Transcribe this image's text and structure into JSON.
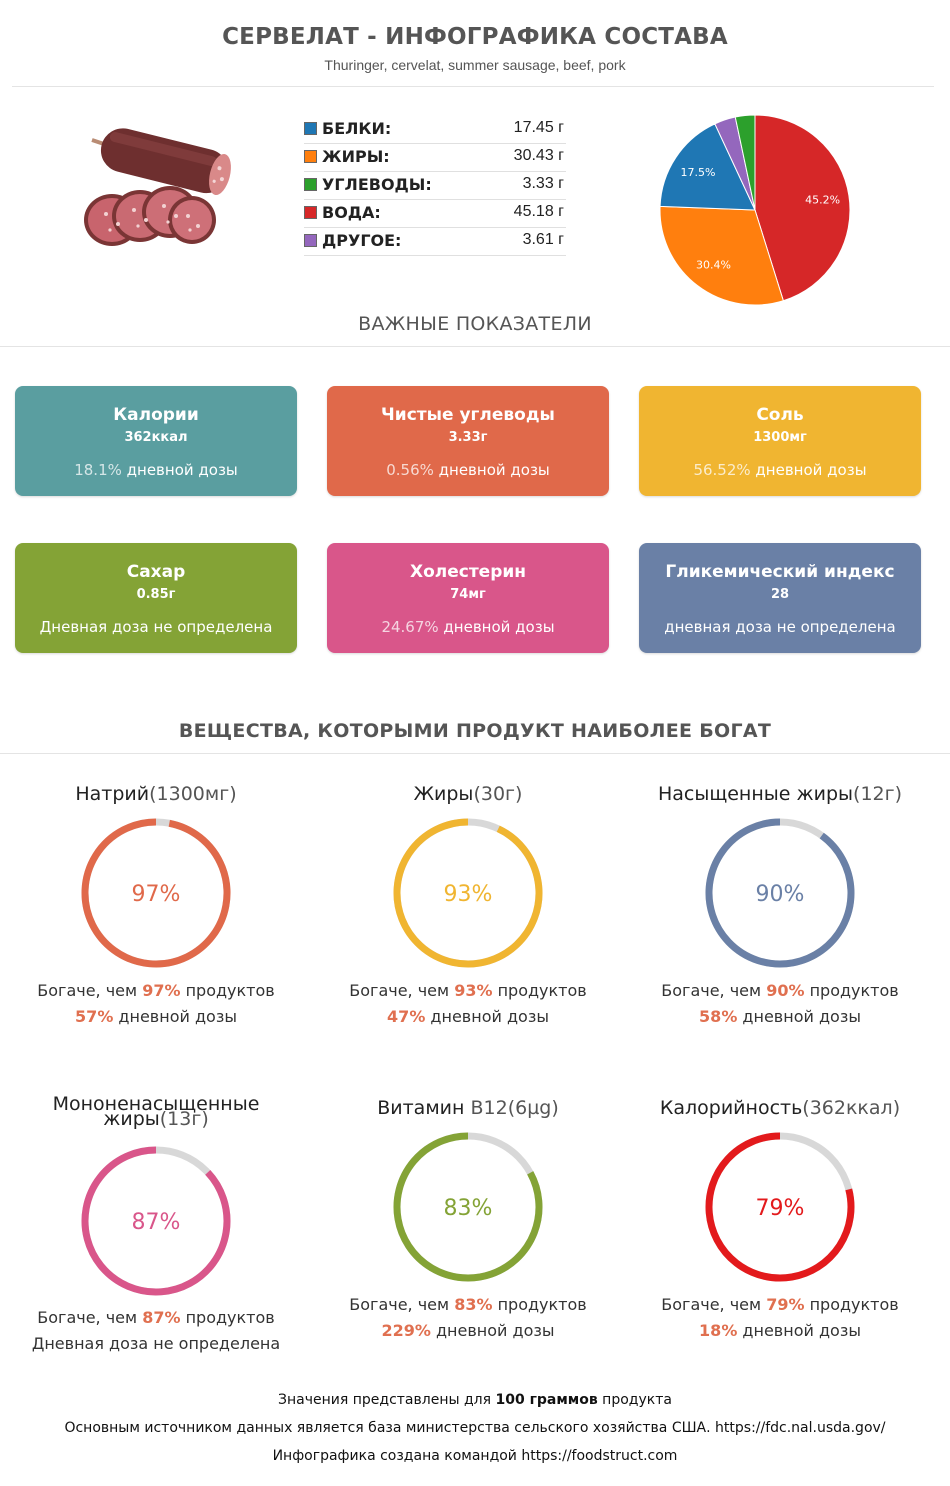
{
  "header": {
    "title": "СЕРВЕЛАТ - ИНФОГРАФИКА СОСТАВА",
    "subtitle": "Thuringer, cervelat, summer sausage, beef, pork"
  },
  "macros": [
    {
      "name": "БЕЛКИ:",
      "value": "17.45 г",
      "color": "#1f77b4"
    },
    {
      "name": "ЖИРЫ:",
      "value": "30.43 г",
      "color": "#ff7f0e"
    },
    {
      "name": "УГЛЕВОДЫ:",
      "value": "3.33 г",
      "color": "#2ca02c"
    },
    {
      "name": "ВОДА:",
      "value": "45.18 г",
      "color": "#d62728"
    },
    {
      "name": "ДРУГОЕ:",
      "value": "3.61 г",
      "color": "#9467bd"
    }
  ],
  "chart_data": {
    "type": "pie",
    "slices": [
      {
        "label": "ВОДА",
        "value": 45.18,
        "pct_label": "45.2%",
        "color": "#d62728"
      },
      {
        "label": "ЖИРЫ",
        "value": 30.43,
        "pct_label": "30.4%",
        "color": "#ff7f0e"
      },
      {
        "label": "БЕЛКИ",
        "value": 17.45,
        "pct_label": "17.5%",
        "color": "#1f77b4"
      },
      {
        "label": "ДРУГОЕ",
        "value": 3.61,
        "pct_label": "",
        "color": "#9467bd"
      },
      {
        "label": "УГЛЕВОДЫ",
        "value": 3.33,
        "pct_label": "",
        "color": "#2ca02c"
      }
    ]
  },
  "section1": {
    "title": "ВАЖНЫЕ ПОКАЗАТЕЛИ"
  },
  "cards": [
    {
      "title": "Калории",
      "value": "362ккал",
      "pct": "18.1%",
      "suffix": " дневной дозы",
      "color": "#5a9ea0"
    },
    {
      "title": "Чистые углеводы",
      "value": "3.33г",
      "pct": "0.56%",
      "suffix": " дневной дозы",
      "color": "#e0694a"
    },
    {
      "title": "Соль",
      "value": "1300мг",
      "pct": "56.52%",
      "suffix": " дневной дозы",
      "color": "#f0b531"
    },
    {
      "title": "Сахар",
      "value": "0.85г",
      "pct": "",
      "suffix": "Дневная доза не определена",
      "color": "#84a336"
    },
    {
      "title": "Холестерин",
      "value": "74мг",
      "pct": "24.67%",
      "suffix": " дневной дозы",
      "color": "#d9568a"
    },
    {
      "title": "Гликемический индекс",
      "value": "28",
      "pct": "",
      "suffix": "дневная доза не определена",
      "color": "#6a80a6"
    }
  ],
  "section2": {
    "title": "ВЕЩЕСТВА, КОТОРЫМИ ПРОДУКТ НАИБОЛЕЕ БОГАТ"
  },
  "rings": [
    {
      "name": "Натрий",
      "amount": "(1300мг)",
      "percent": 97,
      "percent_label": "97%",
      "color": "#e0694a",
      "richer_prefix": "Богаче, чем ",
      "richer_pct": "97%",
      "richer_suffix": " продуктов",
      "daily_pct": "57%",
      "daily_suffix": " дневной дозы"
    },
    {
      "name": "Жиры",
      "amount": "(30г)",
      "percent": 93,
      "percent_label": "93%",
      "color": "#f0b531",
      "richer_prefix": "Богаче, чем ",
      "richer_pct": "93%",
      "richer_suffix": " продуктов",
      "daily_pct": "47%",
      "daily_suffix": " дневной дозы"
    },
    {
      "name": "Насыщенные жиры",
      "amount": "(12г)",
      "percent": 90,
      "percent_label": "90%",
      "color": "#6a80a6",
      "richer_prefix": "Богаче, чем ",
      "richer_pct": "90%",
      "richer_suffix": " продуктов",
      "daily_pct": "58%",
      "daily_suffix": " дневной дозы"
    },
    {
      "name": "Мононенасыщенные жиры",
      "amount": "(13г)",
      "percent": 87,
      "percent_label": "87%",
      "color": "#d9568a",
      "richer_prefix": "Богаче, чем ",
      "richer_pct": "87%",
      "richer_suffix": " продуктов",
      "daily_pct": "",
      "daily_suffix": "Дневная доза не определена"
    },
    {
      "name": "Витамин",
      "amount": " B12(6µg)",
      "percent": 83,
      "percent_label": "83%",
      "color": "#84a336",
      "richer_prefix": "Богаче, чем ",
      "richer_pct": "83%",
      "richer_suffix": " продуктов",
      "daily_pct": "229%",
      "daily_suffix": " дневной дозы"
    },
    {
      "name": "Калорийность",
      "amount": "(362ккал)",
      "percent": 79,
      "percent_label": "79%",
      "color": "#e31a1c",
      "richer_prefix": "Богаче, чем ",
      "richer_pct": "79%",
      "richer_suffix": " продуктов",
      "daily_pct": "18%",
      "daily_suffix": " дневной дозы"
    }
  ],
  "footer": {
    "line1_prefix": "Значения представлены для ",
    "line1_bold": "100 граммов",
    "line1_suffix": " продукта",
    "line2": "Основным источником данных является база министерства сельского хозяйства США. https://fdc.nal.usda.gov/",
    "line3": "Инфографика создана командой https://foodstruct.com"
  }
}
